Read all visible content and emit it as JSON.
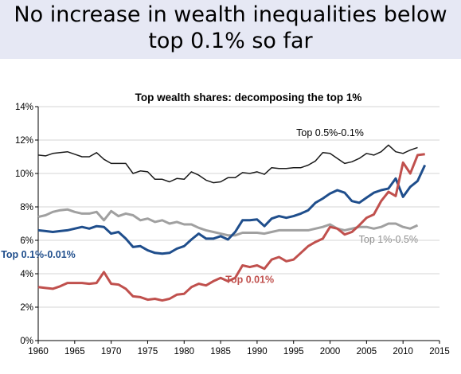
{
  "slide": {
    "title_line1": "No increase in wealth inequalities below",
    "title_line2": "top 0.1% so far"
  },
  "chart_data": {
    "type": "line",
    "title": "Top wealth shares: decomposing the top 1%",
    "xlabel": "",
    "ylabel": "",
    "xlim": [
      1960,
      2015
    ],
    "ylim": [
      0,
      14
    ],
    "x_ticks": [
      1960,
      1965,
      1970,
      1975,
      1980,
      1985,
      1990,
      1995,
      2000,
      2005,
      2010,
      2015
    ],
    "y_ticks": [
      0,
      2,
      4,
      6,
      8,
      10,
      12,
      14
    ],
    "y_tick_labels": [
      "0%",
      "2%",
      "4%",
      "6%",
      "8%",
      "10%",
      "12%",
      "14%"
    ],
    "grid": "horizontal",
    "legend": "none (series labelled directly on the lines)",
    "series": [
      {
        "name": "Top 0.5%-0.1%",
        "color": "#1a1a1a",
        "points": [
          [
            1960,
            11.1
          ],
          [
            1961,
            11.05
          ],
          [
            1962,
            11.2
          ],
          [
            1963,
            11.25
          ],
          [
            1964,
            11.3
          ],
          [
            1965,
            11.15
          ],
          [
            1966,
            11.0
          ],
          [
            1967,
            11.0
          ],
          [
            1968,
            11.25
          ],
          [
            1969,
            10.85
          ],
          [
            1970,
            10.6
          ],
          [
            1971,
            10.6
          ],
          [
            1972,
            10.6
          ],
          [
            1973,
            10.0
          ],
          [
            1974,
            10.15
          ],
          [
            1975,
            10.1
          ],
          [
            1976,
            9.65
          ],
          [
            1977,
            9.65
          ],
          [
            1978,
            9.5
          ],
          [
            1979,
            9.7
          ],
          [
            1980,
            9.65
          ],
          [
            1981,
            10.1
          ],
          [
            1982,
            9.9
          ],
          [
            1983,
            9.6
          ],
          [
            1984,
            9.45
          ],
          [
            1985,
            9.5
          ],
          [
            1986,
            9.75
          ],
          [
            1987,
            9.75
          ],
          [
            1988,
            10.05
          ],
          [
            1989,
            10.0
          ],
          [
            1990,
            10.1
          ],
          [
            1991,
            9.95
          ],
          [
            1992,
            10.35
          ],
          [
            1993,
            10.3
          ],
          [
            1994,
            10.3
          ],
          [
            1995,
            10.35
          ],
          [
            1996,
            10.35
          ],
          [
            1997,
            10.5
          ],
          [
            1998,
            10.75
          ],
          [
            1999,
            11.25
          ],
          [
            2000,
            11.2
          ],
          [
            2001,
            10.9
          ],
          [
            2002,
            10.6
          ],
          [
            2003,
            10.7
          ],
          [
            2004,
            10.9
          ],
          [
            2005,
            11.2
          ],
          [
            2006,
            11.1
          ],
          [
            2007,
            11.3
          ],
          [
            2008,
            11.7
          ],
          [
            2009,
            11.3
          ],
          [
            2010,
            11.2
          ],
          [
            2011,
            11.4
          ],
          [
            2012,
            11.55
          ]
        ]
      },
      {
        "name": "Top 1%-0.5%",
        "color": "#a0a0a0",
        "points": [
          [
            1960,
            7.4
          ],
          [
            1961,
            7.5
          ],
          [
            1962,
            7.7
          ],
          [
            1963,
            7.8
          ],
          [
            1964,
            7.85
          ],
          [
            1965,
            7.7
          ],
          [
            1966,
            7.6
          ],
          [
            1967,
            7.6
          ],
          [
            1968,
            7.7
          ],
          [
            1969,
            7.2
          ],
          [
            1970,
            7.75
          ],
          [
            1971,
            7.45
          ],
          [
            1972,
            7.6
          ],
          [
            1973,
            7.5
          ],
          [
            1974,
            7.2
          ],
          [
            1975,
            7.3
          ],
          [
            1976,
            7.1
          ],
          [
            1977,
            7.2
          ],
          [
            1978,
            7.0
          ],
          [
            1979,
            7.1
          ],
          [
            1980,
            6.95
          ],
          [
            1981,
            6.95
          ],
          [
            1982,
            6.75
          ],
          [
            1983,
            6.6
          ],
          [
            1984,
            6.5
          ],
          [
            1985,
            6.4
          ],
          [
            1986,
            6.3
          ],
          [
            1987,
            6.3
          ],
          [
            1988,
            6.45
          ],
          [
            1989,
            6.45
          ],
          [
            1990,
            6.45
          ],
          [
            1991,
            6.4
          ],
          [
            1992,
            6.5
          ],
          [
            1993,
            6.6
          ],
          [
            1994,
            6.6
          ],
          [
            1995,
            6.6
          ],
          [
            1996,
            6.6
          ],
          [
            1997,
            6.6
          ],
          [
            1998,
            6.7
          ],
          [
            1999,
            6.8
          ],
          [
            2000,
            6.95
          ],
          [
            2001,
            6.7
          ],
          [
            2002,
            6.6
          ],
          [
            2003,
            6.7
          ],
          [
            2004,
            6.8
          ],
          [
            2005,
            6.8
          ],
          [
            2006,
            6.7
          ],
          [
            2007,
            6.8
          ],
          [
            2008,
            7.0
          ],
          [
            2009,
            7.0
          ],
          [
            2010,
            6.8
          ],
          [
            2011,
            6.7
          ],
          [
            2012,
            6.9
          ]
        ]
      },
      {
        "name": "Top 0.1%-0.01%",
        "color": "#1f4e8c",
        "points": [
          [
            1960,
            6.6
          ],
          [
            1961,
            6.55
          ],
          [
            1962,
            6.5
          ],
          [
            1963,
            6.55
          ],
          [
            1964,
            6.6
          ],
          [
            1965,
            6.7
          ],
          [
            1966,
            6.8
          ],
          [
            1967,
            6.7
          ],
          [
            1968,
            6.85
          ],
          [
            1969,
            6.8
          ],
          [
            1970,
            6.4
          ],
          [
            1971,
            6.5
          ],
          [
            1972,
            6.1
          ],
          [
            1973,
            5.6
          ],
          [
            1974,
            5.65
          ],
          [
            1975,
            5.4
          ],
          [
            1976,
            5.25
          ],
          [
            1977,
            5.2
          ],
          [
            1978,
            5.25
          ],
          [
            1979,
            5.5
          ],
          [
            1980,
            5.65
          ],
          [
            1981,
            6.05
          ],
          [
            1982,
            6.4
          ],
          [
            1983,
            6.1
          ],
          [
            1984,
            6.1
          ],
          [
            1985,
            6.25
          ],
          [
            1986,
            6.05
          ],
          [
            1987,
            6.5
          ],
          [
            1988,
            7.2
          ],
          [
            1989,
            7.2
          ],
          [
            1990,
            7.25
          ],
          [
            1991,
            6.85
          ],
          [
            1992,
            7.3
          ],
          [
            1993,
            7.45
          ],
          [
            1994,
            7.35
          ],
          [
            1995,
            7.45
          ],
          [
            1996,
            7.6
          ],
          [
            1997,
            7.8
          ],
          [
            1998,
            8.25
          ],
          [
            1999,
            8.5
          ],
          [
            2000,
            8.8
          ],
          [
            2001,
            9.0
          ],
          [
            2002,
            8.85
          ],
          [
            2003,
            8.35
          ],
          [
            2004,
            8.25
          ],
          [
            2005,
            8.55
          ],
          [
            2006,
            8.85
          ],
          [
            2007,
            9.0
          ],
          [
            2008,
            9.1
          ],
          [
            2009,
            9.7
          ],
          [
            2010,
            8.6
          ],
          [
            2011,
            9.2
          ],
          [
            2012,
            9.55
          ],
          [
            2013,
            10.5
          ]
        ]
      },
      {
        "name": "Top 0.01%",
        "color": "#c0504d",
        "points": [
          [
            1960,
            3.2
          ],
          [
            1961,
            3.15
          ],
          [
            1962,
            3.1
          ],
          [
            1963,
            3.25
          ],
          [
            1964,
            3.45
          ],
          [
            1965,
            3.45
          ],
          [
            1966,
            3.45
          ],
          [
            1967,
            3.4
          ],
          [
            1968,
            3.45
          ],
          [
            1969,
            4.1
          ],
          [
            1970,
            3.4
          ],
          [
            1971,
            3.35
          ],
          [
            1972,
            3.1
          ],
          [
            1973,
            2.65
          ],
          [
            1974,
            2.6
          ],
          [
            1975,
            2.45
          ],
          [
            1976,
            2.5
          ],
          [
            1977,
            2.4
          ],
          [
            1978,
            2.5
          ],
          [
            1979,
            2.75
          ],
          [
            1980,
            2.8
          ],
          [
            1981,
            3.2
          ],
          [
            1982,
            3.4
          ],
          [
            1983,
            3.3
          ],
          [
            1984,
            3.55
          ],
          [
            1985,
            3.75
          ],
          [
            1986,
            3.55
          ],
          [
            1987,
            3.75
          ],
          [
            1988,
            4.5
          ],
          [
            1989,
            4.4
          ],
          [
            1990,
            4.5
          ],
          [
            1991,
            4.3
          ],
          [
            1992,
            4.85
          ],
          [
            1993,
            5.0
          ],
          [
            1994,
            4.75
          ],
          [
            1995,
            4.85
          ],
          [
            1996,
            5.25
          ],
          [
            1997,
            5.65
          ],
          [
            1998,
            5.9
          ],
          [
            1999,
            6.1
          ],
          [
            2000,
            6.8
          ],
          [
            2001,
            6.7
          ],
          [
            2002,
            6.35
          ],
          [
            2003,
            6.5
          ],
          [
            2004,
            6.9
          ],
          [
            2005,
            7.35
          ],
          [
            2006,
            7.55
          ],
          [
            2007,
            8.35
          ],
          [
            2008,
            8.9
          ],
          [
            2009,
            8.65
          ],
          [
            2010,
            10.65
          ],
          [
            2011,
            10.0
          ],
          [
            2012,
            11.1
          ],
          [
            2013,
            11.15
          ]
        ]
      }
    ],
    "annotations": [
      {
        "text": "Top 0.5%-0.1%",
        "color": "#000000",
        "anchor": [
          2000,
          12.25
        ],
        "weight": "normal"
      },
      {
        "text": "Top 1%-0.5%",
        "color": "#909090",
        "anchor": [
          2008,
          5.85
        ],
        "weight": "normal"
      },
      {
        "text": "Top 0.1%-0.01%",
        "color": "#1f4e8c",
        "anchor": [
          1960,
          4.95
        ],
        "weight": "bold"
      },
      {
        "text": "Top 0.01%",
        "color": "#c0504d",
        "anchor": [
          1989,
          3.45
        ],
        "weight": "bold"
      }
    ]
  }
}
